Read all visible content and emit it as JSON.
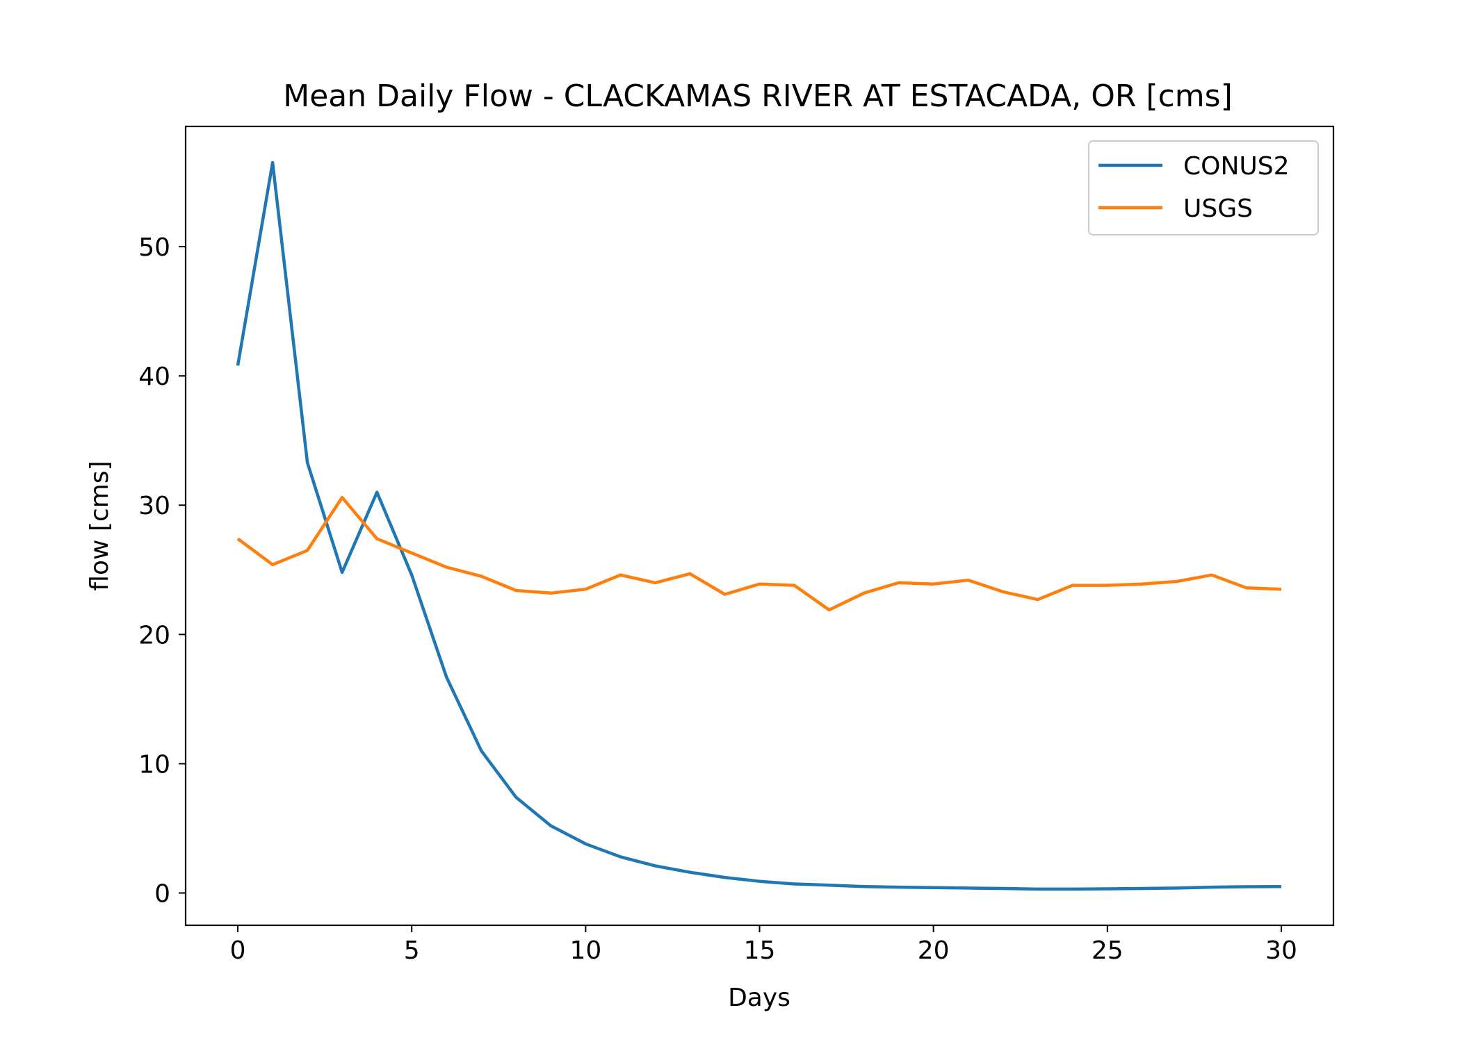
{
  "chart_data": {
    "type": "line",
    "title": "Mean Daily Flow - CLACKAMAS RIVER AT ESTACADA, OR [cms]",
    "xlabel": "Days",
    "ylabel": "flow [cms]",
    "xlim": [
      -1.5,
      31.5
    ],
    "ylim": [
      -2.5,
      59.3
    ],
    "xticks": [
      0,
      5,
      10,
      15,
      20,
      25,
      30
    ],
    "yticks": [
      0,
      10,
      20,
      30,
      40,
      50
    ],
    "legend_position": "top-right",
    "x": [
      0,
      1,
      2,
      3,
      4,
      5,
      6,
      7,
      8,
      9,
      10,
      11,
      12,
      13,
      14,
      15,
      16,
      17,
      18,
      19,
      20,
      21,
      22,
      23,
      24,
      25,
      26,
      27,
      28,
      29,
      30
    ],
    "series": [
      {
        "name": "CONUS2",
        "color": "#1f77b4",
        "values": [
          40.8,
          56.5,
          33.3,
          24.8,
          31.0,
          24.6,
          16.7,
          11.0,
          7.4,
          5.2,
          3.8,
          2.8,
          2.1,
          1.6,
          1.2,
          0.9,
          0.7,
          0.6,
          0.5,
          0.45,
          0.42,
          0.38,
          0.35,
          0.3,
          0.3,
          0.32,
          0.35,
          0.38,
          0.45,
          0.48,
          0.5
        ]
      },
      {
        "name": "USGS",
        "color": "#ff7f0e",
        "values": [
          27.4,
          25.4,
          26.5,
          30.6,
          27.4,
          26.3,
          25.2,
          24.5,
          23.4,
          23.2,
          23.5,
          24.6,
          24.0,
          24.7,
          23.1,
          23.9,
          23.8,
          21.9,
          23.2,
          24.0,
          23.9,
          24.2,
          23.3,
          22.7,
          23.8,
          23.8,
          23.9,
          24.1,
          24.6,
          23.6,
          23.5
        ]
      }
    ]
  }
}
